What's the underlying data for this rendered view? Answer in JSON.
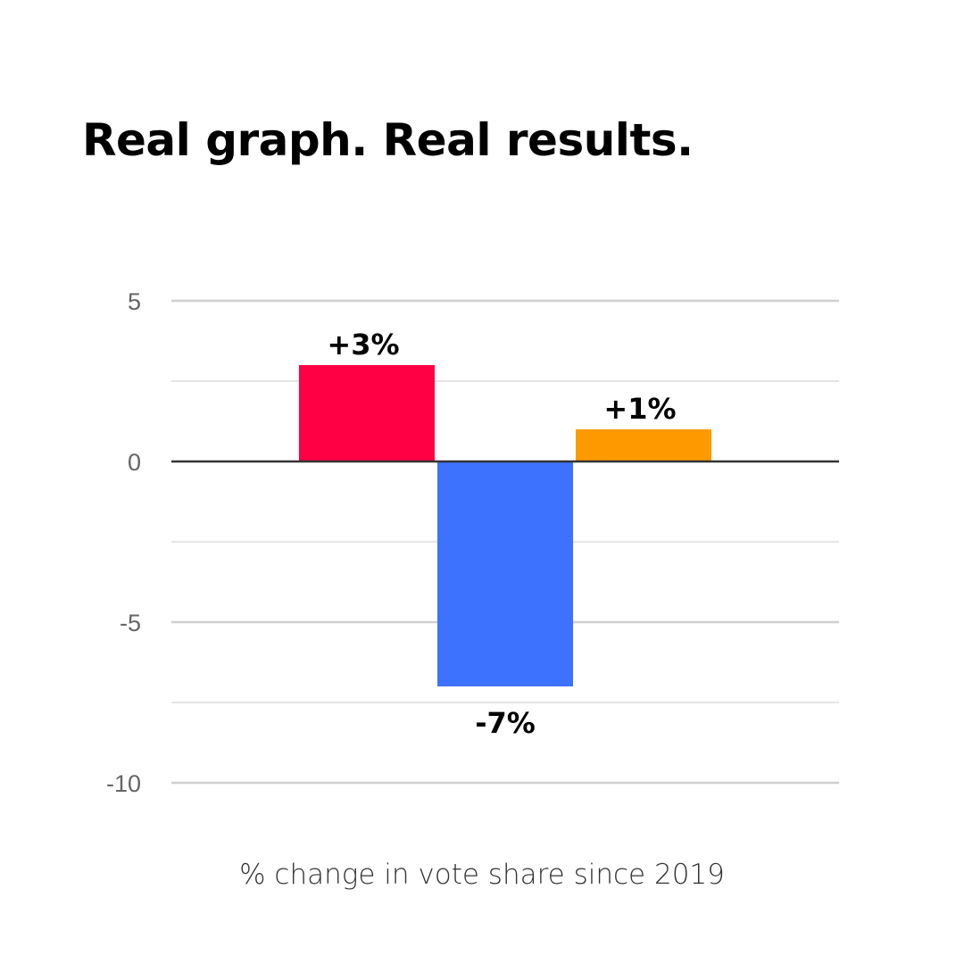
{
  "chart_data": {
    "type": "bar",
    "title": "Real graph. Real results.",
    "caption": "% change in vote share since 2019",
    "categories": [
      "",
      "",
      ""
    ],
    "values": [
      3,
      -7,
      1
    ],
    "data_labels": [
      "+3%",
      "-7%",
      "+1%"
    ],
    "colors": [
      "#ff0044",
      "#3d72ff",
      "#ff9900"
    ],
    "yticks": [
      5,
      0,
      -5,
      -10
    ],
    "ylim": [
      -10,
      5
    ],
    "grid": true,
    "legend": "none"
  }
}
